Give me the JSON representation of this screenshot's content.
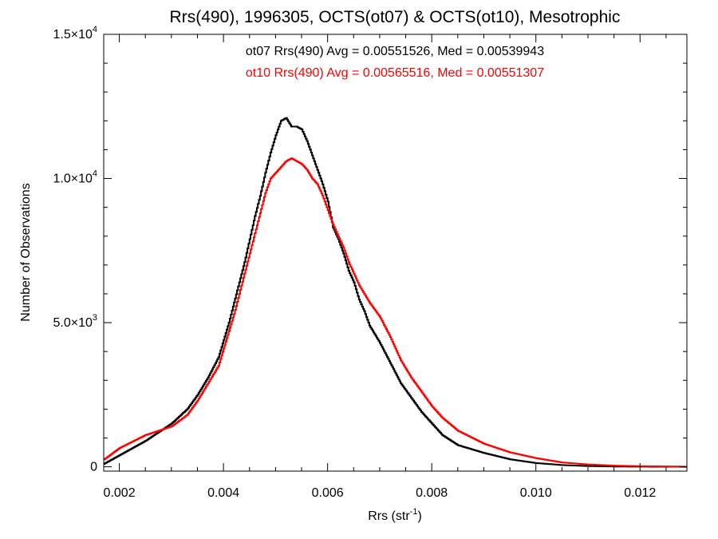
{
  "chart_data": {
    "type": "line",
    "title": "Rrs(490), 1996305, OCTS(ot07) & OCTS(ot10), Mesotrophic",
    "xlabel_main": "Rrs (str",
    "xlabel_sup": "-1",
    "xlabel_end": ")",
    "ylabel": "Number of Observations",
    "xlim": [
      0.0017,
      0.0129
    ],
    "ylim": [
      -150,
      15000
    ],
    "x_ticks": [
      {
        "value": 0.002,
        "label": "0.002"
      },
      {
        "value": 0.004,
        "label": "0.004"
      },
      {
        "value": 0.006,
        "label": "0.006"
      },
      {
        "value": 0.008,
        "label": "0.008"
      },
      {
        "value": 0.01,
        "label": "0.010"
      },
      {
        "value": 0.012,
        "label": "0.012"
      }
    ],
    "y_ticks": [
      {
        "value": 0,
        "mantissa": "0",
        "exp": ""
      },
      {
        "value": 5000,
        "mantissa": "5.0×10",
        "exp": "3"
      },
      {
        "value": 10000,
        "mantissa": "1.0×10",
        "exp": "4"
      },
      {
        "value": 15000,
        "mantissa": "1.5×10",
        "exp": "4"
      }
    ],
    "grid": false,
    "series": [
      {
        "name": "ot07",
        "color": "#000000",
        "annotation": "ot07 Rrs(490) Avg = 0.00551526, Med = 0.00539943",
        "x": [
          0.0017,
          0.002,
          0.0025,
          0.003,
          0.0033,
          0.0035,
          0.0037,
          0.0039,
          0.004,
          0.0041,
          0.0042,
          0.0043,
          0.0044,
          0.0045,
          0.0046,
          0.0047,
          0.0048,
          0.0049,
          0.005,
          0.0051,
          0.0052,
          0.0053,
          0.0054,
          0.0055,
          0.0056,
          0.0057,
          0.0058,
          0.0059,
          0.006,
          0.0061,
          0.0062,
          0.0063,
          0.0064,
          0.0065,
          0.0066,
          0.0067,
          0.0068,
          0.007,
          0.0072,
          0.0074,
          0.0076,
          0.0078,
          0.008,
          0.0082,
          0.0085,
          0.009,
          0.0095,
          0.01,
          0.0105,
          0.011,
          0.0115,
          0.012,
          0.0129
        ],
        "y": [
          100,
          400,
          900,
          1500,
          2000,
          2500,
          3100,
          3800,
          4400,
          5000,
          5700,
          6400,
          7100,
          7900,
          8700,
          9400,
          10200,
          10900,
          11500,
          12000,
          12100,
          11800,
          11800,
          11700,
          11300,
          10800,
          10300,
          9800,
          9200,
          8300,
          7900,
          7400,
          6800,
          6400,
          5800,
          5400,
          4900,
          4300,
          3600,
          2900,
          2400,
          1900,
          1500,
          1100,
          750,
          480,
          260,
          130,
          60,
          25,
          10,
          5,
          0
        ]
      },
      {
        "name": "ot10",
        "color": "#ff0000",
        "annotation": "ot10 Rrs(490) Avg = 0.00565516, Med = 0.00551307",
        "x": [
          0.0017,
          0.002,
          0.0025,
          0.003,
          0.0033,
          0.0035,
          0.0037,
          0.0039,
          0.004,
          0.0041,
          0.0042,
          0.0043,
          0.0044,
          0.0045,
          0.0046,
          0.0047,
          0.0048,
          0.0049,
          0.005,
          0.0051,
          0.0052,
          0.0053,
          0.0054,
          0.0055,
          0.0056,
          0.0057,
          0.0058,
          0.0059,
          0.006,
          0.0061,
          0.0062,
          0.0063,
          0.0064,
          0.0065,
          0.0066,
          0.0067,
          0.0068,
          0.007,
          0.0072,
          0.0074,
          0.0076,
          0.0078,
          0.008,
          0.0082,
          0.0085,
          0.009,
          0.0095,
          0.01,
          0.0105,
          0.011,
          0.0115,
          0.012,
          0.0129
        ],
        "y": [
          250,
          650,
          1100,
          1400,
          1800,
          2300,
          2900,
          3500,
          4100,
          4700,
          5300,
          6000,
          6700,
          7400,
          8100,
          8800,
          9500,
          10000,
          10200,
          10400,
          10600,
          10700,
          10600,
          10500,
          10300,
          10000,
          9800,
          9400,
          8900,
          8400,
          8000,
          7600,
          7100,
          6700,
          6300,
          6000,
          5700,
          5200,
          4500,
          3700,
          3100,
          2600,
          2100,
          1700,
          1250,
          800,
          500,
          300,
          150,
          80,
          40,
          20,
          5
        ]
      }
    ]
  }
}
